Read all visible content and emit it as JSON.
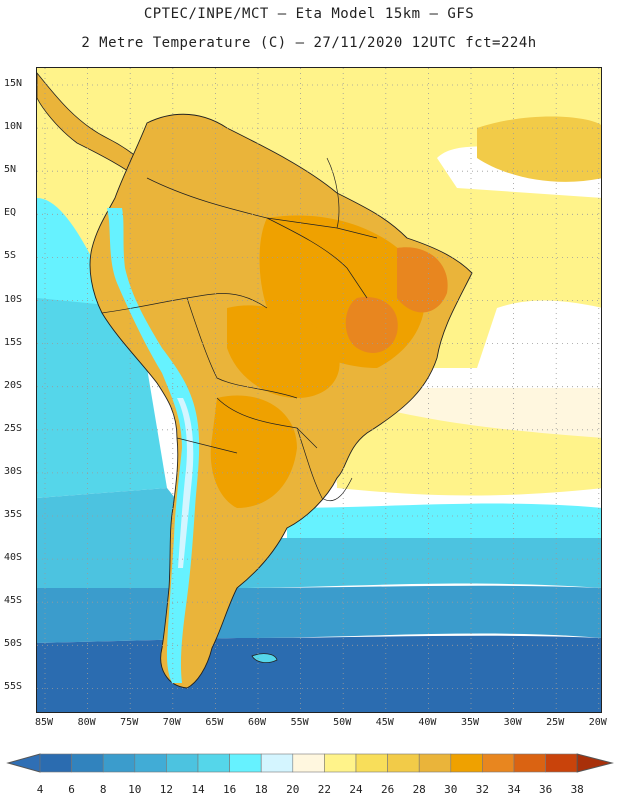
{
  "header": {
    "line1": "CPTEC/INPE/MCT –  Eta Model 15km – GFS",
    "line2": "2 Metre Temperature (C) – 27/11/2020 12UTC fct=224h"
  },
  "map": {
    "lat_labels": [
      "15N",
      "10N",
      "5N",
      "EQ",
      "5S",
      "10S",
      "15S",
      "20S",
      "25S",
      "30S",
      "35S",
      "40S",
      "45S",
      "50S",
      "55S"
    ],
    "lon_labels": [
      "85W",
      "80W",
      "75W",
      "70W",
      "65W",
      "60W",
      "55W",
      "50W",
      "45W",
      "40W",
      "35W",
      "30W",
      "25W",
      "20W"
    ]
  },
  "colorbar": {
    "labels": [
      "4",
      "6",
      "8",
      "10",
      "12",
      "14",
      "16",
      "18",
      "20",
      "22",
      "24",
      "26",
      "28",
      "30",
      "32",
      "34",
      "36",
      "38"
    ],
    "colors": [
      "#2b6cb0",
      "#3183be",
      "#3b9ccc",
      "#41acd6",
      "#4cc3e0",
      "#55d6ea",
      "#66f2ff",
      "#d4f5ff",
      "#fff7df",
      "#fff38a",
      "#f8de5a",
      "#f2cb48",
      "#eab43a",
      "#efa100",
      "#e8861f",
      "#da6312",
      "#c9430b",
      "#a8300a"
    ],
    "under_color": "#2f6fb5",
    "over_color": "#a8300a"
  }
}
